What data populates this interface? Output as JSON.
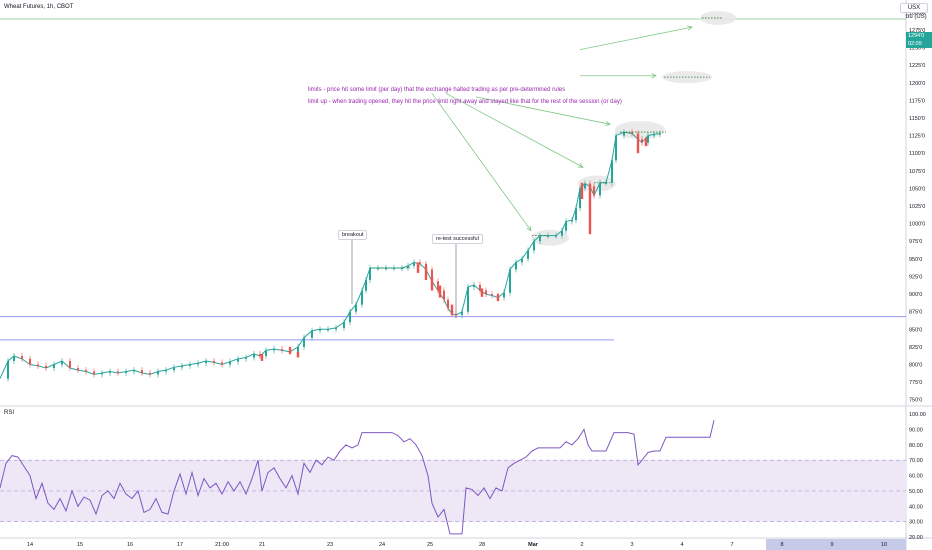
{
  "header": {
    "title": "Wheat Futures, 1h, CBOT",
    "currency": "USX",
    "unit": "bu (US)",
    "last_price": "1294'0",
    "countdown": "02:09"
  },
  "annotations": {
    "limits": "limits - price hit some limit (per day) that the exchange halted trading as per pre-determined rules",
    "limit_up": "limit up - when trading opened, they hit the price limit right away and stayed like that for the rest of the session (or day)",
    "breakout": "breakout",
    "retest": "re-test successful"
  },
  "colors": {
    "up": "#26a69a",
    "down": "#ef5350",
    "rsi_line": "#7e57c2",
    "rsi_band": "#ede7f6",
    "hline": "#9598f5",
    "annot": "#9c27b0",
    "arrow": "#81c784"
  },
  "chart_data": [
    {
      "type": "candlestick",
      "title": "Wheat Futures, 1h, CBOT",
      "ylabel": "USX / bu (US)",
      "ylim": [
        742.5,
        1317.5
      ],
      "y_ticks": [
        "1300'0",
        "1275'0",
        "1250'0",
        "1225'0",
        "1200'0",
        "1175'0",
        "1150'0",
        "1125'0",
        "1100'0",
        "1075'0",
        "1050'0",
        "1025'0",
        "1000'0",
        "975'0",
        "950'0",
        "925'0",
        "900'0",
        "875'0",
        "850'0",
        "825'0",
        "800'0",
        "775'0",
        "750'0"
      ],
      "y_tick_values": [
        1300,
        1275,
        1250,
        1225,
        1200,
        1175,
        1150,
        1125,
        1100,
        1075,
        1050,
        1025,
        1000,
        975,
        950,
        925,
        900,
        875,
        850,
        825,
        800,
        775,
        750
      ],
      "x_ticks": [
        "14",
        "15",
        "16",
        "17",
        "21:00",
        "21",
        "23",
        "24",
        "25",
        "28",
        "Mar",
        "2",
        "3",
        "4",
        "7",
        "8",
        "9",
        "10"
      ],
      "close_path": [
        [
          0,
          780
        ],
        [
          8,
          805
        ],
        [
          14,
          812
        ],
        [
          22,
          808
        ],
        [
          30,
          800
        ],
        [
          38,
          798
        ],
        [
          46,
          795
        ],
        [
          54,
          800
        ],
        [
          62,
          805
        ],
        [
          70,
          795
        ],
        [
          78,
          792
        ],
        [
          86,
          790
        ],
        [
          94,
          786
        ],
        [
          102,
          788
        ],
        [
          110,
          790
        ],
        [
          118,
          788
        ],
        [
          126,
          790
        ],
        [
          134,
          792
        ],
        [
          142,
          788
        ],
        [
          150,
          786
        ],
        [
          158,
          790
        ],
        [
          166,
          792
        ],
        [
          174,
          796
        ],
        [
          182,
          798
        ],
        [
          190,
          800
        ],
        [
          198,
          802
        ],
        [
          206,
          805
        ],
        [
          214,
          803
        ],
        [
          222,
          800
        ],
        [
          230,
          804
        ],
        [
          238,
          808
        ],
        [
          246,
          810
        ],
        [
          254,
          815
        ],
        [
          260,
          812
        ],
        [
          266,
          820
        ],
        [
          274,
          822
        ],
        [
          282,
          820
        ],
        [
          290,
          818
        ],
        [
          298,
          825
        ],
        [
          304,
          838
        ],
        [
          312,
          848
        ],
        [
          320,
          850
        ],
        [
          328,
          850
        ],
        [
          336,
          852
        ],
        [
          344,
          860
        ],
        [
          350,
          875
        ],
        [
          356,
          885
        ],
        [
          362,
          905
        ],
        [
          366,
          920
        ],
        [
          370,
          937
        ],
        [
          378,
          937
        ],
        [
          386,
          937
        ],
        [
          394,
          937
        ],
        [
          402,
          937
        ],
        [
          408,
          940
        ],
        [
          414,
          945
        ],
        [
          420,
          943
        ],
        [
          426,
          935
        ],
        [
          432,
          918
        ],
        [
          438,
          905
        ],
        [
          444,
          892
        ],
        [
          448,
          880
        ],
        [
          452,
          872
        ],
        [
          456,
          870
        ],
        [
          462,
          875
        ],
        [
          468,
          910
        ],
        [
          474,
          913
        ],
        [
          480,
          905
        ],
        [
          486,
          900
        ],
        [
          492,
          898
        ],
        [
          498,
          895
        ],
        [
          504,
          902
        ],
        [
          510,
          935
        ],
        [
          516,
          945
        ],
        [
          522,
          950
        ],
        [
          528,
          962
        ],
        [
          534,
          975
        ],
        [
          540,
          983
        ],
        [
          548,
          983
        ],
        [
          556,
          983
        ],
        [
          562,
          990
        ],
        [
          566,
          1003
        ],
        [
          572,
          1005
        ],
        [
          576,
          1022
        ],
        [
          580,
          1050
        ],
        [
          585,
          1057
        ],
        [
          590,
          1053
        ],
        [
          594,
          1040
        ],
        [
          600,
          1058
        ],
        [
          606,
          1058
        ],
        [
          612,
          1090
        ],
        [
          616,
          1125
        ],
        [
          624,
          1130
        ],
        [
          632,
          1128
        ],
        [
          638,
          1120
        ],
        [
          642,
          1115
        ],
        [
          648,
          1125
        ],
        [
          654,
          1127
        ],
        [
          660,
          1128
        ]
      ],
      "red_candles": [
        [
          262,
          815,
          805
        ],
        [
          290,
          825,
          815
        ],
        [
          298,
          818,
          810
        ],
        [
          418,
          945,
          930
        ],
        [
          426,
          940,
          920
        ],
        [
          432,
          925,
          905
        ],
        [
          440,
          912,
          895
        ],
        [
          452,
          885,
          870
        ],
        [
          482,
          908,
          896
        ],
        [
          498,
          900,
          890
        ],
        [
          582,
          1058,
          1035
        ],
        [
          590,
          1055,
          985
        ],
        [
          638,
          1128,
          1100
        ],
        [
          646,
          1122,
          1110
        ]
      ],
      "limit_lines": [
        [
          370,
          410,
          937
        ],
        [
          532,
          548,
          983
        ],
        [
          594,
          612,
          1058
        ],
        [
          620,
          666,
          1130
        ],
        [
          664,
          710,
          1208
        ],
        [
          702,
          722,
          1292
        ]
      ],
      "highlight_ellipses": [
        [
          718,
          1292,
          18,
          7
        ],
        [
          687,
          1208,
          25,
          6
        ],
        [
          640,
          1133,
          25,
          9
        ],
        [
          597,
          1057,
          19,
          8
        ],
        [
          550,
          980,
          19,
          8
        ]
      ],
      "hlines": [
        {
          "y": 868,
          "x_from": 0,
          "x_to": 906
        },
        {
          "y": 835,
          "x_from": 0,
          "x_to": 614
        },
        {
          "y": 1290.5,
          "x_from": 0,
          "x_to": 906
        }
      ],
      "arrows": [
        [
          580,
          1247,
          692,
          1279
        ],
        [
          580,
          1210,
          656,
          1210
        ],
        [
          476,
          1180,
          610,
          1141
        ],
        [
          446,
          1185,
          583,
          1080
        ],
        [
          432,
          1185,
          531,
          990
        ]
      ]
    },
    {
      "type": "line",
      "title": "RSI",
      "ylim": [
        20,
        104
      ],
      "y_ticks": [
        "100.00",
        "90.00",
        "80.00",
        "70.00",
        "60.00",
        "50.00",
        "40.00",
        "30.00",
        "20.00"
      ],
      "y_tick_values": [
        100,
        90,
        80,
        70,
        60,
        50,
        40,
        30,
        20
      ],
      "band": [
        30,
        70
      ],
      "mid": 50,
      "series": [
        {
          "values": [
            [
              0,
              52
            ],
            [
              6,
              68
            ],
            [
              12,
              73
            ],
            [
              18,
              72
            ],
            [
              24,
              66
            ],
            [
              30,
              60
            ],
            [
              36,
              45
            ],
            [
              42,
              55
            ],
            [
              48,
              42
            ],
            [
              54,
              38
            ],
            [
              60,
              45
            ],
            [
              66,
              37
            ],
            [
              72,
              50
            ],
            [
              78,
              40
            ],
            [
              84,
              46
            ],
            [
              90,
              44
            ],
            [
              96,
              35
            ],
            [
              102,
              47
            ],
            [
              108,
              50
            ],
            [
              114,
              45
            ],
            [
              120,
              55
            ],
            [
              126,
              48
            ],
            [
              132,
              45
            ],
            [
              138,
              50
            ],
            [
              144,
              36
            ],
            [
              150,
              38
            ],
            [
              156,
              45
            ],
            [
              162,
              36
            ],
            [
              168,
              35
            ],
            [
              174,
              50
            ],
            [
              180,
              61
            ],
            [
              186,
              48
            ],
            [
              192,
              62
            ],
            [
              198,
              47
            ],
            [
              204,
              58
            ],
            [
              210,
              52
            ],
            [
              216,
              55
            ],
            [
              222,
              48
            ],
            [
              228,
              56
            ],
            [
              234,
              50
            ],
            [
              240,
              56
            ],
            [
              246,
              48
            ],
            [
              252,
              58
            ],
            [
              258,
              70
            ],
            [
              262,
              50
            ],
            [
              268,
              62
            ],
            [
              274,
              65
            ],
            [
              280,
              58
            ],
            [
              286,
              52
            ],
            [
              292,
              60
            ],
            [
              298,
              48
            ],
            [
              304,
              68
            ],
            [
              310,
              62
            ],
            [
              316,
              70
            ],
            [
              322,
              67
            ],
            [
              328,
              72
            ],
            [
              334,
              70
            ],
            [
              340,
              76
            ],
            [
              346,
              80
            ],
            [
              352,
              78
            ],
            [
              358,
              80
            ],
            [
              362,
              88
            ],
            [
              368,
              88
            ],
            [
              376,
              88
            ],
            [
              384,
              88
            ],
            [
              392,
              88
            ],
            [
              398,
              86
            ],
            [
              404,
              82
            ],
            [
              410,
              84
            ],
            [
              416,
              80
            ],
            [
              422,
              73
            ],
            [
              428,
              60
            ],
            [
              432,
              42
            ],
            [
              438,
              33
            ],
            [
              444,
              38
            ],
            [
              450,
              22
            ],
            [
              456,
              22
            ],
            [
              462,
              22
            ],
            [
              466,
              52
            ],
            [
              472,
              51
            ],
            [
              478,
              47
            ],
            [
              484,
              52
            ],
            [
              490,
              45
            ],
            [
              496,
              52
            ],
            [
              502,
              50
            ],
            [
              508,
              65
            ],
            [
              514,
              68
            ],
            [
              520,
              70
            ],
            [
              526,
              72
            ],
            [
              532,
              76
            ],
            [
              538,
              78
            ],
            [
              546,
              78
            ],
            [
              554,
              78
            ],
            [
              560,
              78
            ],
            [
              566,
              82
            ],
            [
              572,
              80
            ],
            [
              578,
              84
            ],
            [
              584,
              90
            ],
            [
              588,
              80
            ],
            [
              592,
              76
            ],
            [
              600,
              76
            ],
            [
              606,
              76
            ],
            [
              610,
              82
            ],
            [
              614,
              88
            ],
            [
              620,
              88
            ],
            [
              628,
              88
            ],
            [
              634,
              87
            ],
            [
              638,
              67
            ],
            [
              642,
              70
            ],
            [
              648,
              75
            ],
            [
              654,
              76
            ],
            [
              660,
              76
            ],
            [
              666,
              85
            ],
            [
              680,
              85
            ],
            [
              700,
              85
            ],
            [
              710,
              85
            ],
            [
              714,
              96
            ]
          ]
        }
      ]
    }
  ]
}
